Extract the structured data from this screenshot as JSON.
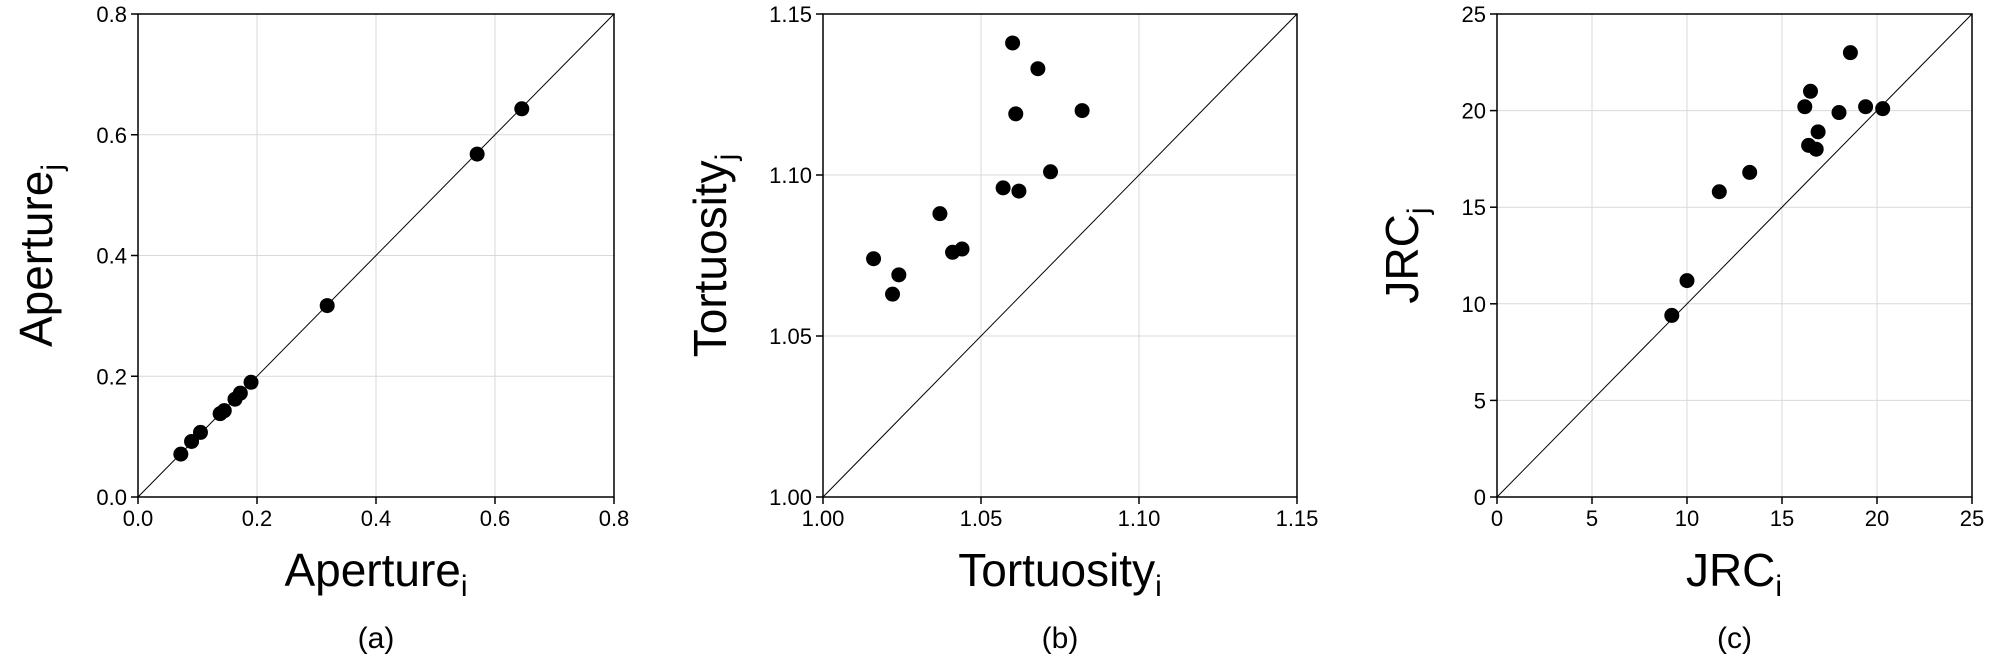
{
  "chart_data": [
    {
      "type": "scatter",
      "panel_label": "(a)",
      "xlabel_main": "Aperture",
      "xlabel_sub": "i",
      "ylabel_main": "Aperture",
      "ylabel_sub": "j",
      "xlim": [
        0,
        0.8
      ],
      "ylim": [
        0,
        0.8
      ],
      "xticks": [
        "0.0",
        "0.2",
        "0.4",
        "0.6",
        "0.8"
      ],
      "yticks": [
        "0.0",
        "0.2",
        "0.4",
        "0.6",
        "0.8"
      ],
      "xtick_values": [
        0,
        0.2,
        0.4,
        0.6,
        0.8
      ],
      "ytick_values": [
        0,
        0.2,
        0.4,
        0.6,
        0.8
      ],
      "grid": true,
      "reference_line": "y=x",
      "points": [
        [
          0.072,
          0.071
        ],
        [
          0.09,
          0.092
        ],
        [
          0.105,
          0.107
        ],
        [
          0.138,
          0.138
        ],
        [
          0.145,
          0.143
        ],
        [
          0.163,
          0.162
        ],
        [
          0.172,
          0.172
        ],
        [
          0.19,
          0.19
        ],
        [
          0.318,
          0.317
        ],
        [
          0.57,
          0.568
        ],
        [
          0.645,
          0.643
        ]
      ]
    },
    {
      "type": "scatter",
      "panel_label": "(b)",
      "xlabel_main": "Tortuosity",
      "xlabel_sub": "i",
      "ylabel_main": "Tortuosity",
      "ylabel_sub": "j",
      "xlim": [
        1.0,
        1.15
      ],
      "ylim": [
        1.0,
        1.15
      ],
      "xticks": [
        "1.00",
        "1.05",
        "1.10",
        "1.15"
      ],
      "yticks": [
        "1.00",
        "1.05",
        "1.10",
        "1.15"
      ],
      "xtick_values": [
        1.0,
        1.05,
        1.1,
        1.15
      ],
      "ytick_values": [
        1.0,
        1.05,
        1.1,
        1.15
      ],
      "grid": true,
      "reference_line": "y=x",
      "points": [
        [
          1.016,
          1.074
        ],
        [
          1.022,
          1.063
        ],
        [
          1.024,
          1.069
        ],
        [
          1.037,
          1.088
        ],
        [
          1.041,
          1.076
        ],
        [
          1.044,
          1.077
        ],
        [
          1.057,
          1.096
        ],
        [
          1.06,
          1.141
        ],
        [
          1.061,
          1.119
        ],
        [
          1.062,
          1.095
        ],
        [
          1.068,
          1.133
        ],
        [
          1.072,
          1.101
        ],
        [
          1.082,
          1.12
        ]
      ]
    },
    {
      "type": "scatter",
      "panel_label": "(c)",
      "xlabel_main": "JRC",
      "xlabel_sub": "i",
      "ylabel_main": "JRC",
      "ylabel_sub": "j",
      "xlim": [
        0,
        25
      ],
      "ylim": [
        0,
        25
      ],
      "xticks": [
        "0",
        "5",
        "10",
        "15",
        "20",
        "25"
      ],
      "yticks": [
        "0",
        "5",
        "10",
        "15",
        "20",
        "25"
      ],
      "xtick_values": [
        0,
        5,
        10,
        15,
        20,
        25
      ],
      "ytick_values": [
        0,
        5,
        10,
        15,
        20,
        25
      ],
      "grid": true,
      "reference_line": "y=x",
      "points": [
        [
          9.2,
          9.4
        ],
        [
          10.0,
          11.2
        ],
        [
          11.7,
          15.8
        ],
        [
          13.3,
          16.8
        ],
        [
          16.2,
          20.2
        ],
        [
          16.4,
          18.2
        ],
        [
          16.5,
          21.0
        ],
        [
          16.8,
          18.0
        ],
        [
          16.9,
          18.9
        ],
        [
          18.0,
          19.9
        ],
        [
          18.6,
          23.0
        ],
        [
          19.4,
          20.2
        ],
        [
          20.3,
          20.1
        ]
      ]
    }
  ]
}
